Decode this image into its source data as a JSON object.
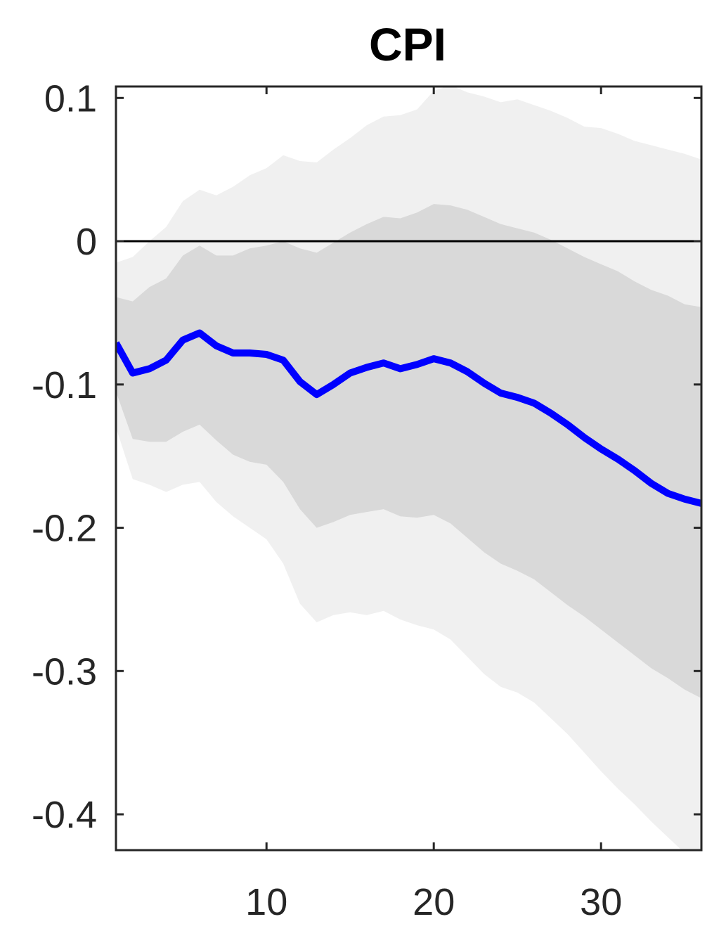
{
  "chart_data": {
    "type": "line",
    "title": "CPI",
    "xlabel": "",
    "ylabel": "",
    "xlim": [
      1,
      36
    ],
    "ylim": [
      -0.425,
      0.108
    ],
    "x_ticks": [
      10,
      20,
      30
    ],
    "x_tick_labels": [
      "10",
      "20",
      "30"
    ],
    "y_ticks": [
      0.1,
      0,
      -0.1,
      -0.2,
      -0.3,
      -0.4
    ],
    "y_tick_labels": [
      "0.1",
      "0",
      "-0.1",
      "-0.2",
      "-0.3",
      "-0.4"
    ],
    "grid": false,
    "zero_line": true,
    "colors": {
      "line": "#0000ff",
      "band_outer": "#f0f0f0",
      "band_inner": "#d9d9d9",
      "zero_line": "#000000",
      "axis": "#262626"
    },
    "x": [
      1,
      2,
      3,
      4,
      5,
      6,
      7,
      8,
      9,
      10,
      11,
      12,
      13,
      14,
      15,
      16,
      17,
      18,
      19,
      20,
      21,
      22,
      23,
      24,
      25,
      26,
      27,
      28,
      29,
      30,
      31,
      32,
      33,
      34,
      35,
      36
    ],
    "series": [
      {
        "values": [
          -0.071,
          -0.092,
          -0.089,
          -0.083,
          -0.069,
          -0.064,
          -0.073,
          -0.078,
          -0.078,
          -0.079,
          -0.083,
          -0.098,
          -0.107,
          -0.1,
          -0.092,
          -0.088,
          -0.085,
          -0.089,
          -0.086,
          -0.082,
          -0.085,
          -0.091,
          -0.099,
          -0.106,
          -0.109,
          -0.113,
          -0.12,
          -0.128,
          -0.137,
          -0.145,
          -0.152,
          -0.16,
          -0.169,
          -0.176,
          -0.18,
          -0.183
        ]
      }
    ],
    "bands": {
      "outer": {
        "upper": [
          -0.015,
          -0.011,
          0.0,
          0.01,
          0.028,
          0.036,
          0.032,
          0.038,
          0.046,
          0.051,
          0.06,
          0.056,
          0.055,
          0.064,
          0.072,
          0.081,
          0.087,
          0.088,
          0.092,
          0.105,
          0.109,
          0.104,
          0.101,
          0.097,
          0.099,
          0.095,
          0.091,
          0.086,
          0.08,
          0.079,
          0.075,
          0.07,
          0.067,
          0.064,
          0.061,
          0.057
        ],
        "lower": [
          -0.13,
          -0.166,
          -0.17,
          -0.175,
          -0.17,
          -0.168,
          -0.182,
          -0.192,
          -0.2,
          -0.208,
          -0.225,
          -0.253,
          -0.266,
          -0.261,
          -0.259,
          -0.261,
          -0.258,
          -0.264,
          -0.268,
          -0.271,
          -0.278,
          -0.29,
          -0.302,
          -0.311,
          -0.315,
          -0.322,
          -0.333,
          -0.344,
          -0.357,
          -0.37,
          -0.382,
          -0.393,
          -0.405,
          -0.416,
          -0.427,
          -0.438
        ]
      },
      "inner": {
        "upper": [
          -0.039,
          -0.042,
          -0.032,
          -0.026,
          -0.01,
          -0.003,
          -0.01,
          -0.01,
          -0.005,
          -0.003,
          0.0,
          -0.005,
          -0.008,
          -0.001,
          0.006,
          0.012,
          0.017,
          0.016,
          0.02,
          0.026,
          0.025,
          0.022,
          0.017,
          0.012,
          0.009,
          0.006,
          0.001,
          -0.005,
          -0.011,
          -0.016,
          -0.021,
          -0.028,
          -0.034,
          -0.038,
          -0.044,
          -0.046
        ],
        "lower": [
          -0.105,
          -0.138,
          -0.14,
          -0.14,
          -0.133,
          -0.128,
          -0.139,
          -0.149,
          -0.154,
          -0.156,
          -0.168,
          -0.187,
          -0.2,
          -0.196,
          -0.191,
          -0.189,
          -0.187,
          -0.192,
          -0.193,
          -0.191,
          -0.197,
          -0.207,
          -0.217,
          -0.225,
          -0.23,
          -0.236,
          -0.245,
          -0.254,
          -0.262,
          -0.271,
          -0.28,
          -0.289,
          -0.298,
          -0.305,
          -0.313,
          -0.319
        ]
      }
    }
  }
}
